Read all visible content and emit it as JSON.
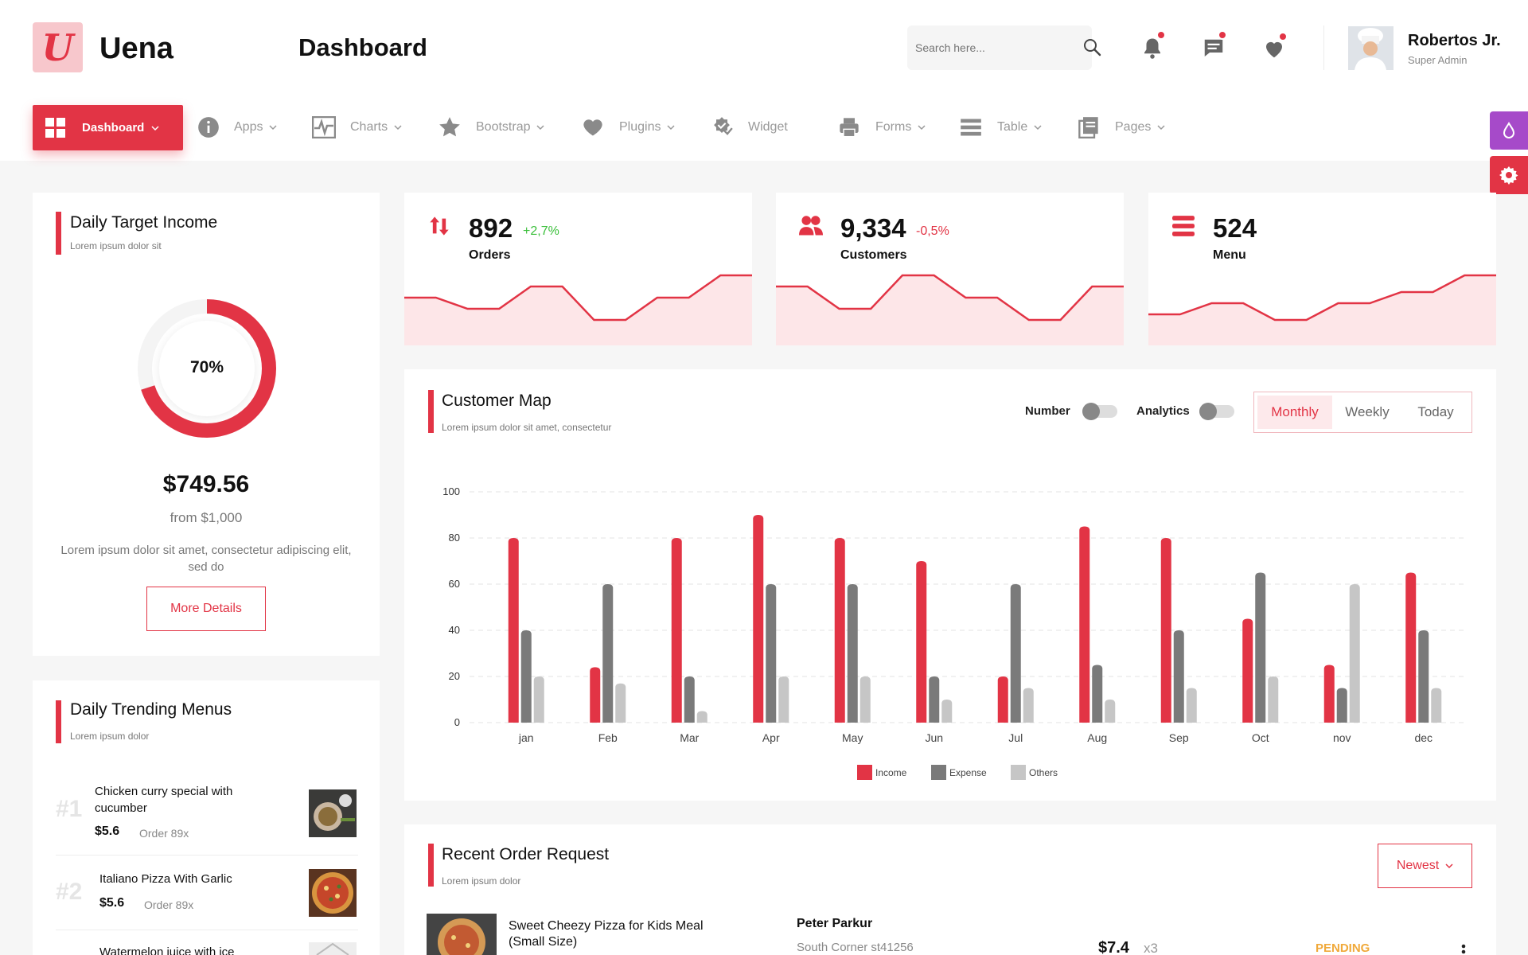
{
  "header": {
    "logo_letter": "U",
    "brand": "Uena",
    "page_title": "Dashboard",
    "search_placeholder": "Search here...",
    "user_name": "Robertos Jr.",
    "user_role": "Super Admin"
  },
  "nav": {
    "items": [
      {
        "label": "Dashboard",
        "icon": "dashboard-grid-icon",
        "active": true
      },
      {
        "label": "Apps",
        "icon": "info-icon"
      },
      {
        "label": "Charts",
        "icon": "pulse-chart-icon"
      },
      {
        "label": "Bootstrap",
        "icon": "star-icon"
      },
      {
        "label": "Plugins",
        "icon": "heart-icon"
      },
      {
        "label": "Widget",
        "icon": "widget-check-icon"
      },
      {
        "label": "Forms",
        "icon": "printer-icon"
      },
      {
        "label": "Table",
        "icon": "list-icon"
      },
      {
        "label": "Pages",
        "icon": "pages-icon"
      }
    ]
  },
  "daily_target": {
    "title": "Daily Target Income",
    "subtitle": "Lorem ipsum dolor sit",
    "percent_label": "70%",
    "percent": 0.7,
    "amount": "$749.56",
    "from": "from $1,000",
    "description": "Lorem ipsum dolor sit amet, consectetur adipiscing elit, sed do",
    "button": "More Details"
  },
  "stats": [
    {
      "value": "892",
      "change": "+2,7%",
      "label": "Orders",
      "icon": "arrows-up-down-icon",
      "trend": [
        6,
        6,
        4,
        4,
        8,
        8,
        2,
        2,
        6,
        6,
        10,
        10
      ]
    },
    {
      "value": "9,334",
      "change": "-0,5%",
      "label": "Customers",
      "icon": "users-icon",
      "trend": [
        8,
        8,
        4,
        4,
        10,
        10,
        6,
        6,
        2,
        2,
        8,
        8
      ]
    },
    {
      "value": "524",
      "change": "",
      "label": "Menu",
      "icon": "menu-list-icon",
      "trend": [
        3,
        3,
        5,
        5,
        2,
        2,
        5,
        5,
        7,
        7,
        10,
        10
      ]
    }
  ],
  "customer_map": {
    "title": "Customer Map",
    "subtitle": "Lorem ipsum dolor sit amet, consectetur",
    "toggle_number": "Number",
    "toggle_analytics": "Analytics",
    "tabs": [
      "Monthly",
      "Weekly",
      "Today"
    ],
    "active_tab": "Monthly"
  },
  "chart_data": {
    "type": "bar",
    "categories": [
      "jan",
      "Feb",
      "Mar",
      "Apr",
      "May",
      "Jun",
      "Jul",
      "Aug",
      "Sep",
      "Oct",
      "nov",
      "dec"
    ],
    "series": [
      {
        "name": "Income",
        "color": "#e23445",
        "values": [
          80,
          24,
          80,
          90,
          80,
          70,
          20,
          85,
          80,
          45,
          25,
          65
        ]
      },
      {
        "name": "Expense",
        "color": "#7a7a7a",
        "values": [
          40,
          60,
          20,
          60,
          60,
          20,
          60,
          25,
          40,
          65,
          15,
          40
        ]
      },
      {
        "name": "Others",
        "color": "#c6c6c6",
        "values": [
          20,
          17,
          5,
          20,
          20,
          10,
          15,
          10,
          15,
          20,
          60,
          15
        ]
      }
    ],
    "yticks": [
      "0",
      "20",
      "40",
      "60",
      "80",
      "100"
    ],
    "ylim": [
      0,
      100
    ],
    "legend": "bottom",
    "grid": true
  },
  "trending": {
    "title": "Daily Trending Menus",
    "subtitle": "Lorem ipsum dolor",
    "items": [
      {
        "rank": "#1",
        "name": "Chicken curry special with cucumber",
        "price": "$5.6",
        "order": "Order 89x"
      },
      {
        "rank": "#2",
        "name": "Italiano Pizza With Garlic",
        "price": "$5.6",
        "order": "Order 89x"
      },
      {
        "rank": "",
        "name": "Watermelon juice with ice",
        "price": "",
        "order": ""
      }
    ]
  },
  "recent_orders": {
    "title": "Recent Order Request",
    "subtitle": "Lorem ipsum dolor",
    "filter": "Newest",
    "rows": [
      {
        "item": "Sweet Cheezy Pizza for Kids Meal (Small Size)",
        "customer": "Peter Parkur",
        "address": "South Corner st41256",
        "price": "$7.4",
        "qty": "x3",
        "status": "PENDING"
      }
    ]
  }
}
